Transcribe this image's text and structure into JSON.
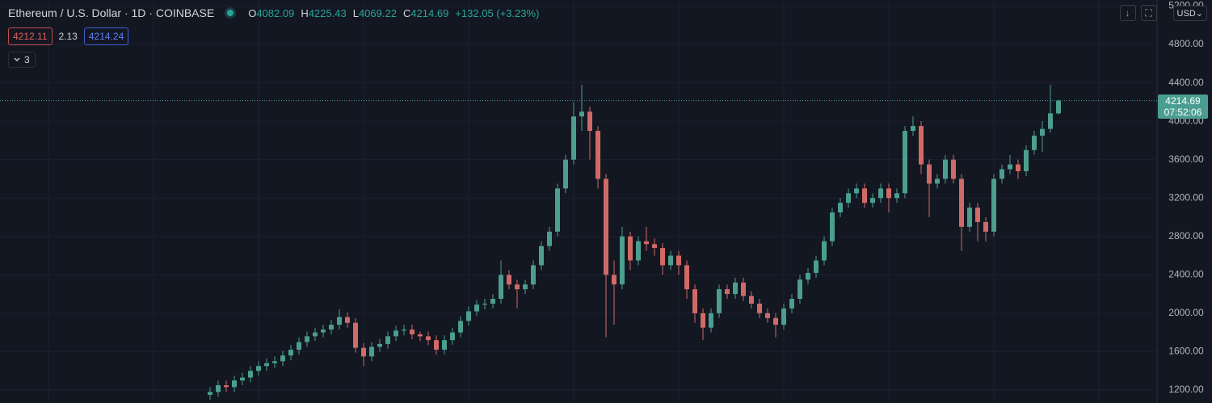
{
  "header": {
    "symbol": "Ethereum / U.S. Dollar · 1D · COINBASE",
    "ohlc": [
      {
        "key": "O",
        "value": 4082.09
      },
      {
        "key": "H",
        "value": 4225.43
      },
      {
        "key": "L",
        "value": 4069.22
      },
      {
        "key": "C",
        "value": 4214.69
      }
    ],
    "change": "+132.05 (+3.23%)",
    "sell": 4212.11,
    "spread": 2.13,
    "buy": 4214.24,
    "indicators": 3,
    "currency": "USD"
  },
  "chart_data": {
    "type": "candlestick",
    "open": [
      1150,
      1180,
      1250,
      1230,
      1300,
      1330,
      1400,
      1450,
      1480,
      1500,
      1560,
      1620,
      1700,
      1760,
      1800,
      1830,
      1880,
      1960,
      1900,
      1640,
      1550,
      1650,
      1680,
      1760,
      1820,
      1830,
      1780,
      1760,
      1720,
      1620,
      1720,
      1800,
      1920,
      2020,
      2090,
      2100,
      2150,
      2400,
      2300,
      2250,
      2300,
      2500,
      2700,
      2850,
      3300,
      3600,
      4050,
      4100,
      3900,
      3400,
      2400,
      2300,
      2800,
      2550,
      2750,
      2720,
      2680,
      2500,
      2600,
      2500,
      2250,
      2000,
      1850,
      2000,
      2250,
      2200,
      2320,
      2180,
      2100,
      2000,
      1950,
      1880,
      2050,
      2150,
      2350,
      2420,
      2550,
      2750,
      3050,
      3150,
      3250,
      3300,
      3150,
      3200,
      3300,
      3200,
      3250,
      3900,
      3950,
      3550,
      3350,
      3400,
      3600,
      3400,
      2900,
      3100,
      2950,
      2850,
      3400,
      3500,
      3550,
      3480,
      3700,
      3850,
      3920,
      4082.09
    ],
    "high": [
      1230,
      1300,
      1300,
      1350,
      1380,
      1450,
      1500,
      1530,
      1550,
      1610,
      1670,
      1750,
      1810,
      1850,
      1880,
      1930,
      2040,
      2010,
      1950,
      1690,
      1700,
      1730,
      1810,
      1870,
      1880,
      1880,
      1810,
      1810,
      1770,
      1770,
      1850,
      1970,
      2070,
      2140,
      2150,
      2200,
      2550,
      2450,
      2350,
      2350,
      2550,
      2750,
      2900,
      3350,
      3650,
      4200,
      4380,
      4150,
      3950,
      3450,
      2550,
      2900,
      2850,
      2800,
      2900,
      2780,
      2730,
      2650,
      2650,
      2550,
      2300,
      2050,
      2050,
      2300,
      2300,
      2370,
      2370,
      2230,
      2150,
      2050,
      2000,
      2100,
      2200,
      2400,
      2470,
      2600,
      2800,
      3100,
      3200,
      3300,
      3350,
      3350,
      3250,
      3350,
      3350,
      3300,
      3950,
      4050,
      4000,
      3600,
      3450,
      3650,
      3650,
      3450,
      3150,
      3150,
      3000,
      3450,
      3550,
      3650,
      3600,
      3750,
      3900,
      4000,
      4380,
      4225.43
    ],
    "low": [
      1100,
      1130,
      1180,
      1180,
      1250,
      1280,
      1350,
      1400,
      1430,
      1450,
      1510,
      1570,
      1650,
      1710,
      1750,
      1780,
      1830,
      1850,
      1590,
      1450,
      1500,
      1600,
      1630,
      1710,
      1770,
      1730,
      1710,
      1670,
      1570,
      1570,
      1670,
      1750,
      1870,
      1970,
      2040,
      2050,
      2100,
      2250,
      2050,
      2200,
      2250,
      2450,
      2650,
      2800,
      3250,
      3550,
      3900,
      3600,
      3300,
      1750,
      1880,
      2250,
      2450,
      2500,
      2650,
      2600,
      2400,
      2450,
      2400,
      2150,
      1900,
      1720,
      1800,
      1950,
      2150,
      2150,
      2130,
      2050,
      1950,
      1900,
      1750,
      1830,
      2000,
      2100,
      2300,
      2370,
      2500,
      2700,
      3000,
      3100,
      3200,
      3100,
      3100,
      3150,
      3050,
      3150,
      3200,
      3850,
      3450,
      3000,
      3300,
      3350,
      3350,
      2650,
      2850,
      2750,
      2750,
      2800,
      3350,
      3450,
      3400,
      3430,
      3650,
      3680,
      3880,
      4069.22
    ],
    "close": [
      1180,
      1250,
      1230,
      1300,
      1330,
      1400,
      1450,
      1480,
      1500,
      1560,
      1620,
      1700,
      1760,
      1800,
      1830,
      1880,
      1960,
      1900,
      1640,
      1550,
      1650,
      1680,
      1760,
      1820,
      1830,
      1780,
      1760,
      1720,
      1620,
      1720,
      1800,
      1920,
      2020,
      2090,
      2100,
      2150,
      2400,
      2300,
      2250,
      2300,
      2500,
      2700,
      2850,
      3300,
      3600,
      4050,
      4100,
      3900,
      3400,
      2400,
      2300,
      2800,
      2550,
      2750,
      2720,
      2680,
      2500,
      2600,
      2500,
      2250,
      2000,
      1850,
      2000,
      2250,
      2200,
      2320,
      2180,
      2100,
      2000,
      1950,
      1880,
      2050,
      2150,
      2350,
      2420,
      2550,
      2750,
      3050,
      3150,
      3250,
      3300,
      3150,
      3200,
      3300,
      3200,
      3250,
      3900,
      3950,
      3550,
      3350,
      3400,
      3600,
      3400,
      2900,
      3100,
      2950,
      2850,
      3400,
      3500,
      3550,
      3480,
      3700,
      3850,
      3920,
      4082.09,
      4214.69
    ],
    "up_color": "#4c9e8f",
    "down_color": "#d06a66",
    "ylim": [
      1065,
      5263
    ],
    "yticks": [
      {
        "value": 5200,
        "label": "5200.00"
      },
      {
        "value": 4800,
        "label": "4800.00"
      },
      {
        "value": 4400,
        "label": "4400.00"
      },
      {
        "value": 4000,
        "label": "4000.00"
      },
      {
        "value": 3600,
        "label": "3600.00"
      },
      {
        "value": 3200,
        "label": "3200.00"
      },
      {
        "value": 2800,
        "label": "2800.00"
      },
      {
        "value": 2400,
        "label": "2400.00"
      },
      {
        "value": 2000,
        "label": "2000.00"
      },
      {
        "value": 1600,
        "label": "1600.00"
      },
      {
        "value": 1200,
        "label": "1200.00"
      }
    ],
    "grid": true,
    "last_price": 4214.69,
    "countdown": "07:52:06"
  }
}
